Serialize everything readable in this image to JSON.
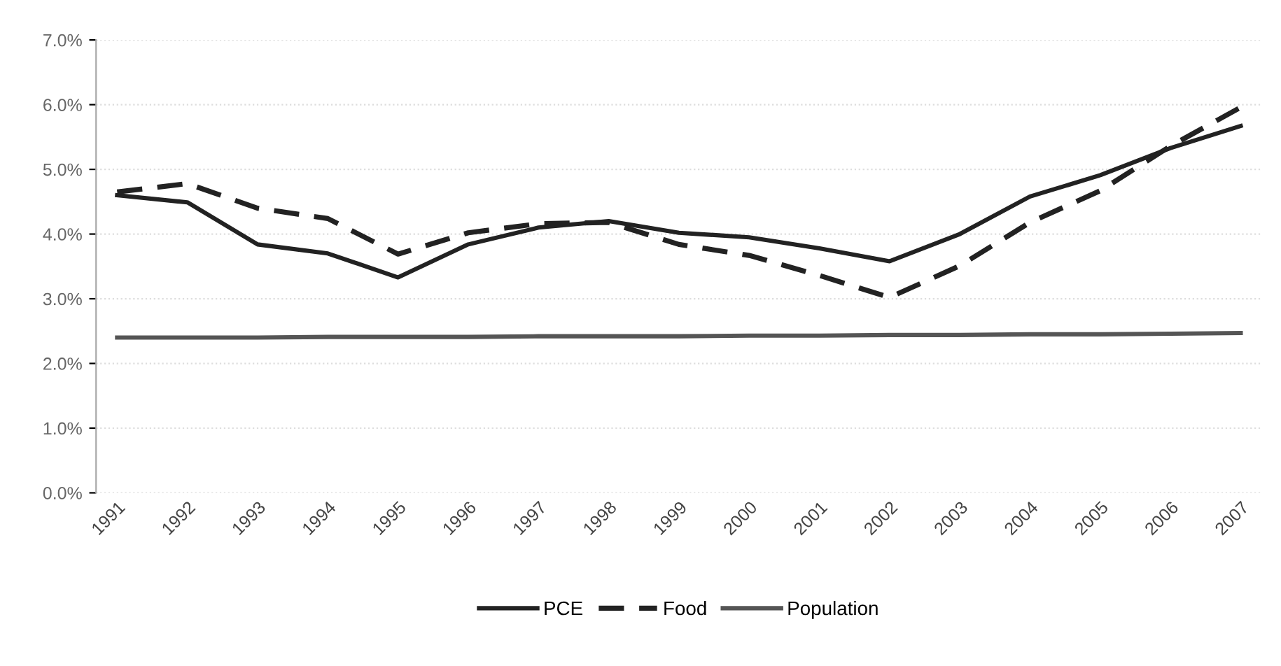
{
  "chart_data": {
    "type": "line",
    "categories": [
      "1991",
      "1992",
      "1993",
      "1994",
      "1995",
      "1996",
      "1997",
      "1998",
      "1999",
      "2000",
      "2001",
      "2002",
      "2003",
      "2004",
      "2005",
      "2006",
      "2007"
    ],
    "series": [
      {
        "name": "PCE",
        "color": "#222222",
        "line_style": "solid",
        "values": [
          4.6,
          4.49,
          3.84,
          3.7,
          3.33,
          3.84,
          4.1,
          4.2,
          4.02,
          3.95,
          3.78,
          3.58,
          4.0,
          4.58,
          4.91,
          5.33,
          5.67
        ]
      },
      {
        "name": "Food",
        "color": "#222222",
        "line_style": "dashed",
        "values": [
          4.65,
          4.78,
          4.4,
          4.24,
          3.69,
          4.02,
          4.16,
          4.18,
          3.84,
          3.67,
          3.36,
          3.02,
          3.51,
          4.18,
          4.67,
          5.36,
          5.96
        ]
      },
      {
        "name": "Population",
        "color": "#555555",
        "line_style": "solid",
        "values": [
          2.4,
          2.4,
          2.4,
          2.41,
          2.41,
          2.41,
          2.42,
          2.42,
          2.42,
          2.43,
          2.43,
          2.44,
          2.44,
          2.45,
          2.45,
          2.46,
          2.47
        ]
      }
    ],
    "ylim": [
      0,
      7
    ],
    "yticks": [
      {
        "value": 0,
        "label": "0.0%"
      },
      {
        "value": 1,
        "label": "1.0%"
      },
      {
        "value": 2,
        "label": "2.0%"
      },
      {
        "value": 3,
        "label": "3.0%"
      },
      {
        "value": 4,
        "label": "4.0%"
      },
      {
        "value": 5,
        "label": "5.0%"
      },
      {
        "value": 6,
        "label": "6.0%"
      },
      {
        "value": 7,
        "label": "7.0%"
      }
    ],
    "grid": "y",
    "legend": "bottom",
    "marker": "none"
  }
}
